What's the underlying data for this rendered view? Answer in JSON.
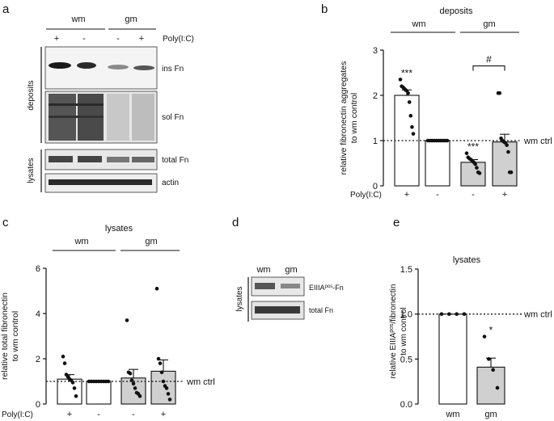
{
  "figure": {
    "panel_a": {
      "letter": "a",
      "groups": [
        "wm",
        "gm"
      ],
      "treatment_label": "Poly(I:C)",
      "signs": [
        "+",
        "-",
        "-",
        "+"
      ],
      "side_labels": [
        "deposits",
        "lysates"
      ],
      "blot_labels": [
        "ins Fn",
        "sol Fn",
        "total Fn",
        "actin"
      ]
    },
    "panel_d": {
      "letter": "d",
      "lanes": [
        "wm",
        "gm"
      ],
      "side_label": "lysates",
      "blot_label_main": "EIIIA",
      "blot_label_sup": "pos",
      "blot_label_rest": "-Fn",
      "blot_label_2": "total Fn"
    }
  },
  "chart_data": [
    {
      "panel": "b",
      "type": "bar",
      "title": "deposits",
      "groups": [
        "wm",
        "gm"
      ],
      "ylabel_lines": [
        "relative fibronectin aggregates",
        "to wm control"
      ],
      "categories": [
        "wm +",
        "wm -",
        "gm -",
        "gm +"
      ],
      "row_label": "Poly(I:C)",
      "row_signs": [
        "+",
        "-",
        "-",
        "+"
      ],
      "values": [
        2.0,
        1.0,
        0.52,
        0.97
      ],
      "errors": [
        0.12,
        0.0,
        0.06,
        0.17
      ],
      "bar_colors": [
        "#ffffff",
        "#ffffff",
        "#d0d0d0",
        "#d0d0d0"
      ],
      "points": [
        [
          2.35,
          2.2,
          2.18,
          2.15,
          2.12,
          2.1,
          2.05,
          1.85,
          1.55,
          1.3,
          1.15
        ],
        [
          1,
          1,
          1,
          1,
          1,
          1,
          1,
          1,
          1,
          1
        ],
        [
          0.72,
          0.63,
          0.6,
          0.58,
          0.55,
          0.52,
          0.48,
          0.4,
          0.3,
          0.28
        ],
        [
          2.05,
          2.05,
          1.05,
          1.0,
          0.97,
          0.95,
          0.9,
          0.75,
          0.3,
          0.3
        ]
      ],
      "ylim": [
        0,
        3
      ],
      "yticks": [
        "0",
        "1",
        "2",
        "3"
      ],
      "reference_line": {
        "value": 1,
        "label": "wm ctrl"
      },
      "annotations": [
        "***",
        "",
        "***",
        ""
      ],
      "bracket_label": "#"
    },
    {
      "panel": "c",
      "type": "bar",
      "title": "lysates",
      "groups": [
        "wm",
        "gm"
      ],
      "ylabel_lines": [
        "relative total fibronectin",
        "to wm control"
      ],
      "categories": [
        "wm +",
        "wm -",
        "gm -",
        "gm +"
      ],
      "row_label": "Poly(I:C)",
      "row_signs": [
        "+",
        "-",
        "-",
        "+"
      ],
      "values": [
        1.1,
        1.0,
        1.15,
        1.45
      ],
      "errors": [
        0.2,
        0.0,
        0.38,
        0.5
      ],
      "bar_colors": [
        "#ffffff",
        "#ffffff",
        "#d0d0d0",
        "#d0d0d0"
      ],
      "points": [
        [
          2.1,
          1.8,
          1.3,
          1.2,
          1.1,
          1.05,
          0.95,
          0.7,
          0.35
        ],
        [
          1,
          1,
          1,
          1,
          1,
          1,
          1,
          1,
          1
        ],
        [
          3.7,
          1.4,
          1.35,
          1.05,
          0.9,
          0.7,
          0.5,
          0.45,
          0.35
        ],
        [
          5.1,
          2.0,
          1.8,
          1.4,
          1.0,
          0.8,
          0.7,
          0.45,
          0.2
        ]
      ],
      "ylim": [
        0,
        6
      ],
      "yticks": [
        "0",
        "2",
        "4",
        "6"
      ],
      "reference_line": {
        "value": 1,
        "label": "wm ctrl"
      }
    },
    {
      "panel": "e",
      "type": "bar",
      "title": "lysates",
      "ylabel_main": "relative EIIIA",
      "ylabel_sup": "pos",
      "ylabel_rest": "/fibronectin",
      "ylabel_line2": "to wm control",
      "categories": [
        "wm",
        "gm"
      ],
      "values": [
        1.0,
        0.41
      ],
      "errors": [
        0.0,
        0.1
      ],
      "bar_colors": [
        "#ffffff",
        "#d0d0d0"
      ],
      "points": [
        [
          1,
          1,
          1,
          1
        ],
        [
          0.75,
          0.5,
          0.38,
          0.18
        ]
      ],
      "ylim": [
        0,
        1.5
      ],
      "yticks": [
        "0.0",
        "0.5",
        "1.0",
        "1.5"
      ],
      "reference_line": {
        "value": 1,
        "label": "wm ctrl"
      },
      "annotations": [
        "",
        "*"
      ]
    }
  ]
}
